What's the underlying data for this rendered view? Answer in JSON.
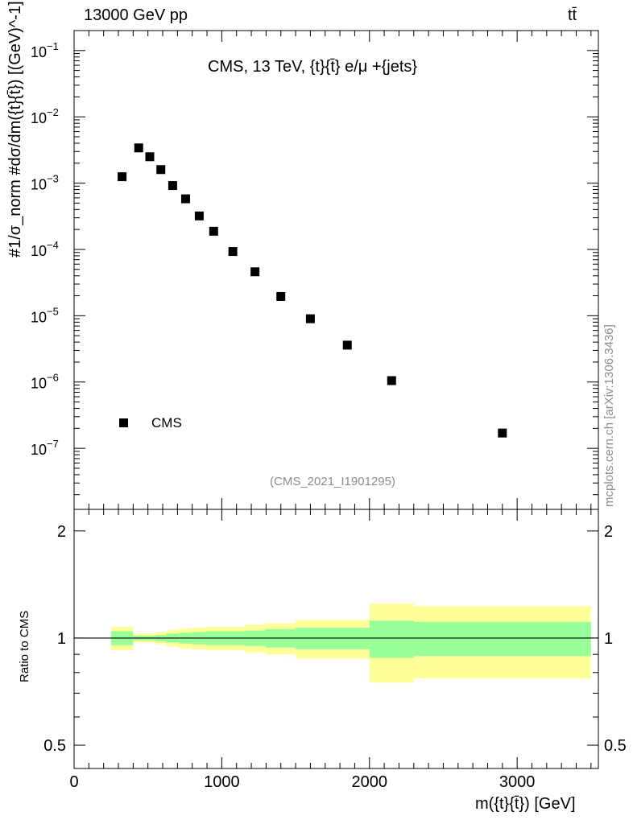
{
  "header": {
    "left": "13000 GeV pp",
    "right": "tt̄"
  },
  "plot_title": "CMS, 13 TeV, {t}{t̄} e/μ +{jets}",
  "watermark": "(CMS_2021_I1901295)",
  "side_label": "mcplots.cern.ch [arXiv:1306.3436]",
  "legend": {
    "label": "CMS"
  },
  "colors": {
    "marker": "#000000",
    "band_inner": "#99ff99",
    "band_outer": "#ffff99",
    "ref_line": "#000000"
  },
  "chart_data": [
    {
      "type": "scatter",
      "name": "main",
      "title": "CMS, 13 TeV, {t}{t̄} e/μ +{jets}",
      "ylabel": "#1/σ_norm #dσ/dm({t}{t̄}) [(GeV)^-1]",
      "y_scale": "log",
      "ylim": [
        1.2e-08,
        0.2
      ],
      "xlim": [
        0,
        3550
      ],
      "yticks_major": [
        "10^-7",
        "10^-6",
        "10^-5",
        "10^-4",
        "10^-3",
        "10^-2",
        "10^-1"
      ],
      "series": [
        {
          "name": "CMS",
          "x": [
            325,
            437.5,
            512.5,
            587.5,
            667.5,
            755,
            847.5,
            945,
            1075,
            1225,
            1400,
            1600,
            1850,
            2150,
            2900
          ],
          "y": [
            0.00125,
            0.0034,
            0.0025,
            0.0016,
            0.00092,
            0.00058,
            0.00032,
            0.000188,
            9.3e-05,
            4.6e-05,
            1.95e-05,
            9e-06,
            3.6e-06,
            1.05e-06,
            1.7e-07
          ]
        }
      ]
    },
    {
      "type": "area",
      "name": "ratio",
      "ylabel": "Ratio to CMS",
      "xlabel": "m({t}{t̄}) [GeV]",
      "y_scale": "log",
      "ylim": [
        0.43,
        2.3
      ],
      "xlim": [
        0,
        3550
      ],
      "yticks": [
        0.5,
        1,
        2
      ],
      "xticks": [
        0,
        1000,
        2000,
        3000
      ],
      "bins": [
        {
          "lo": 250,
          "hi": 400,
          "inner": [
            0.955,
            1.045
          ],
          "outer": [
            0.925,
            1.075
          ]
        },
        {
          "lo": 400,
          "hi": 475,
          "inner": [
            0.985,
            1.015
          ],
          "outer": [
            0.97,
            1.03
          ]
        },
        {
          "lo": 475,
          "hi": 550,
          "inner": [
            0.985,
            1.015
          ],
          "outer": [
            0.97,
            1.03
          ]
        },
        {
          "lo": 550,
          "hi": 625,
          "inner": [
            0.98,
            1.02
          ],
          "outer": [
            0.96,
            1.04
          ]
        },
        {
          "lo": 625,
          "hi": 710,
          "inner": [
            0.97,
            1.03
          ],
          "outer": [
            0.945,
            1.055
          ]
        },
        {
          "lo": 710,
          "hi": 800,
          "inner": [
            0.965,
            1.035
          ],
          "outer": [
            0.935,
            1.065
          ]
        },
        {
          "lo": 800,
          "hi": 895,
          "inner": [
            0.96,
            1.04
          ],
          "outer": [
            0.93,
            1.07
          ]
        },
        {
          "lo": 895,
          "hi": 995,
          "inner": [
            0.955,
            1.045
          ],
          "outer": [
            0.925,
            1.075
          ]
        },
        {
          "lo": 995,
          "hi": 1155,
          "inner": [
            0.955,
            1.045
          ],
          "outer": [
            0.925,
            1.075
          ]
        },
        {
          "lo": 1155,
          "hi": 1295,
          "inner": [
            0.95,
            1.05
          ],
          "outer": [
            0.91,
            1.09
          ]
        },
        {
          "lo": 1295,
          "hi": 1500,
          "inner": [
            0.94,
            1.06
          ],
          "outer": [
            0.9,
            1.1
          ]
        },
        {
          "lo": 1500,
          "hi": 1700,
          "inner": [
            0.93,
            1.07
          ],
          "outer": [
            0.875,
            1.125
          ]
        },
        {
          "lo": 1700,
          "hi": 2000,
          "inner": [
            0.93,
            1.07
          ],
          "outer": [
            0.875,
            1.125
          ]
        },
        {
          "lo": 2000,
          "hi": 2300,
          "inner": [
            0.88,
            1.12
          ],
          "outer": [
            0.75,
            1.25
          ]
        },
        {
          "lo": 2300,
          "hi": 3500,
          "inner": [
            0.89,
            1.11
          ],
          "outer": [
            0.77,
            1.23
          ]
        }
      ]
    }
  ]
}
